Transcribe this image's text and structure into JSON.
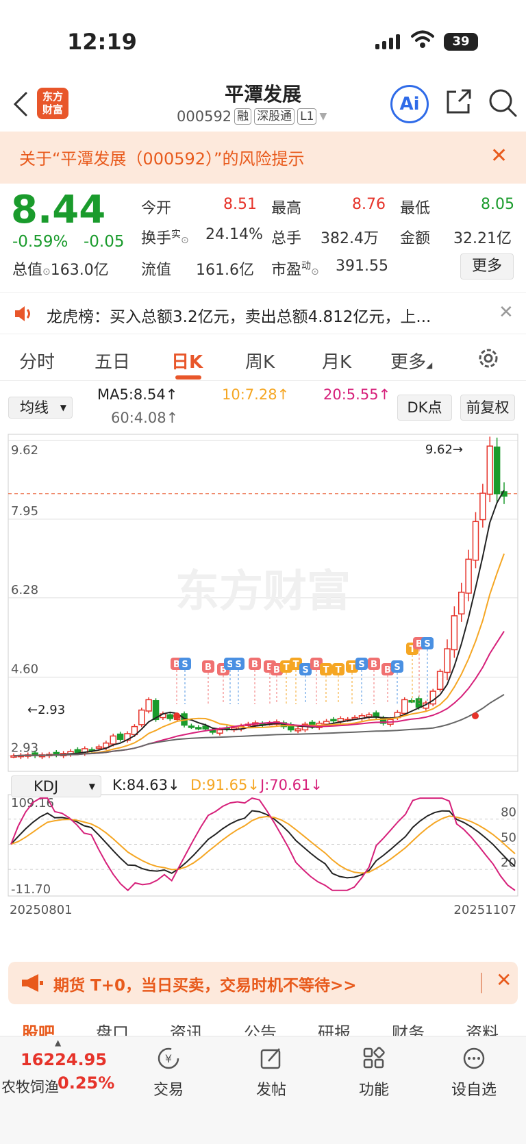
{
  "status": {
    "time": "12:19",
    "battery": "39"
  },
  "header": {
    "logo_line1": "东方",
    "logo_line2": "财富",
    "stock_name": "平潭发展",
    "stock_code": "000592",
    "tags": [
      "融",
      "深股通",
      "L1"
    ]
  },
  "risk_banner": {
    "text": "关于“平潭发展（000592）”的风险提示"
  },
  "quote": {
    "price": "8.44",
    "change_pct": "-0.59%",
    "change": "-0.05",
    "open_label": "今开",
    "open": "8.51",
    "high_label": "最高",
    "high": "8.76",
    "low_label": "最低",
    "low": "8.05",
    "turnover_label": "换手",
    "turnover_sup": "实",
    "turnover": "24.14%",
    "volume_label": "总手",
    "volume": "382.4万",
    "amount_label": "金额",
    "amount": "32.21亿",
    "mktcap_label": "总值",
    "mktcap": "163.0亿",
    "float_label": "流值",
    "float": "161.6亿",
    "pe_label": "市盈",
    "pe_sup": "动",
    "pe": "391.55",
    "more_label": "更多"
  },
  "notice": {
    "text": "龙虎榜：买入总额3.2亿元，卖出总额4.812亿元，上..."
  },
  "ktabs": [
    "分时",
    "五日",
    "日K",
    "周K",
    "月K",
    "更多"
  ],
  "ma": {
    "select_label": "均线",
    "ma5": "MA5:8.54",
    "ma10": "10:7.28",
    "ma20": "20:5.55",
    "ma60": "60:4.08",
    "dk_label": "DK点",
    "adjust_label": "前复权"
  },
  "colors": {
    "up": "#e6332a",
    "down": "#1a9b2c",
    "ma5": "#222222",
    "ma10": "#f5a623",
    "ma20": "#d6207a",
    "ma60": "#666666",
    "accent": "#e8562a"
  },
  "chart_data": [
    {
      "type": "candlestick",
      "y_ticks": [
        "9.62",
        "7.95",
        "6.28",
        "4.60",
        "2.93"
      ],
      "ylim": [
        2.93,
        9.62
      ],
      "max_label": "9.62",
      "min_label": "2.93",
      "watermark": "东方财富",
      "close": [
        2.93,
        2.94,
        2.95,
        2.93,
        2.95,
        2.96,
        2.95,
        2.98,
        3.02,
        3.0,
        3.08,
        3.05,
        3.12,
        3.2,
        3.35,
        3.28,
        3.4,
        3.55,
        3.9,
        4.12,
        3.7,
        3.82,
        3.72,
        3.78,
        3.58,
        3.55,
        3.52,
        3.5,
        3.43,
        3.48,
        3.5,
        3.52,
        3.56,
        3.6,
        3.63,
        3.58,
        3.62,
        3.65,
        3.55,
        3.48,
        3.5,
        3.6,
        3.55,
        3.62,
        3.66,
        3.68,
        3.72,
        3.7,
        3.74,
        3.78,
        3.8,
        3.75,
        3.62,
        3.7,
        3.85,
        4.12,
        4.1,
        3.96,
        4.05,
        4.3,
        4.72,
        5.2,
        5.9,
        6.4,
        7.1,
        7.9,
        8.5,
        9.5,
        8.49,
        8.44
      ]
    },
    {
      "type": "line",
      "indicator": "KDJ",
      "select_label": "KDJ",
      "k_label": "K:84.63",
      "d_label": "D:91.65",
      "j_label": "J:70.61",
      "y_ticks": [
        "109.16",
        "80",
        "50",
        "20",
        "-11.70"
      ],
      "ylim": [
        -11.7,
        109.16
      ],
      "x_start": "20250801",
      "x_end": "20251107"
    }
  ],
  "futures_banner": {
    "text": "期货 T+0，当日买卖，交易时机不等待>>"
  },
  "subtabs": [
    "股吧",
    "盘口",
    "资讯",
    "公告",
    "研报",
    "财务",
    "资料"
  ],
  "bottom": {
    "index_value": "16224.95",
    "index_name": "农牧饲渔",
    "index_change": "0.25%",
    "items": [
      "交易",
      "发帖",
      "功能",
      "设自选"
    ]
  }
}
